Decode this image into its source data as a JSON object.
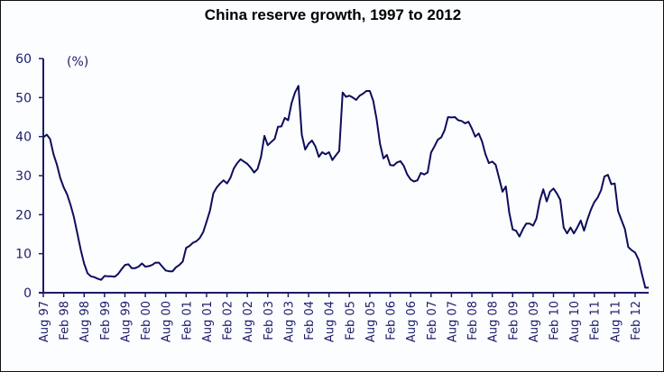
{
  "chart_data": {
    "type": "line",
    "title": "China reserve growth, 1997 to 2012",
    "ylabel": "(%)",
    "xlabel": "",
    "ylim": [
      0,
      60
    ],
    "yticks": [
      0,
      10,
      20,
      30,
      40,
      50,
      60
    ],
    "xticks": [
      "Aug 97",
      "Feb 98",
      "Aug 98",
      "Feb 99",
      "Aug 99",
      "Feb 00",
      "Aug 00",
      "Feb 01",
      "Aug 01",
      "Feb 02",
      "Aug 02",
      "Feb 03",
      "Aug 03",
      "Feb 04",
      "Aug 04",
      "Feb 05",
      "Aug 05",
      "Feb 06",
      "Aug 06",
      "Feb 07",
      "Aug 07",
      "Feb 08",
      "Aug 08",
      "Feb 09",
      "Aug 09",
      "Feb 10",
      "Aug 10",
      "Feb 11",
      "Aug 11",
      "Feb 12"
    ],
    "x_start": "Aug 1997",
    "x_frequency": "monthly",
    "grid": false,
    "line_color": "#0d0d5c",
    "series": [
      {
        "values": [
          39.8,
          40.5,
          39.4,
          35.5,
          32.8,
          29.4,
          27,
          25.2,
          22.5,
          19.4,
          15.2,
          11,
          7.5,
          5,
          4.2,
          4,
          3.6,
          3.3,
          4.3,
          4.2,
          4.2,
          4.1,
          4.8,
          6,
          7.1,
          7.3,
          6.3,
          6.3,
          6.7,
          7.5,
          6.7,
          6.8,
          7.1,
          7.7,
          7.7,
          6.7,
          5.7,
          5.5,
          5.5,
          6.5,
          7.1,
          8,
          11.5,
          12,
          12.8,
          13.2,
          14,
          15.5,
          18.2,
          21,
          25.5,
          27,
          28,
          28.8,
          28,
          29.4,
          31.8,
          33.2,
          34.2,
          33.6,
          33,
          32,
          30.8,
          31.7,
          34.8,
          40.2,
          37.8,
          38.6,
          39.4,
          42.5,
          42.6,
          44.8,
          44.2,
          48.6,
          51.3,
          53,
          40.5,
          36.7,
          38.2,
          39,
          37.5,
          34.8,
          36,
          35.5,
          36,
          34,
          35.2,
          36.3,
          51.3,
          50.2,
          50.5,
          50,
          49.4,
          50.5,
          51,
          51.7,
          51.7,
          49.2,
          44.4,
          38.2,
          34.4,
          35.3,
          32.7,
          32.6,
          33.4,
          33.7,
          32.5,
          30.3,
          29,
          28.5,
          28.8,
          30.7,
          30.3,
          30.8,
          35.9,
          37.5,
          39.2,
          39.8,
          41.7,
          45,
          44.9,
          45,
          44.2,
          44,
          43.4,
          43.8,
          42.1,
          40,
          40.8,
          38.8,
          35.5,
          33.2,
          33.6,
          32.8,
          29.4,
          25.9,
          27.2,
          20.5,
          16.2,
          15.9,
          14.4,
          16.3,
          17.7,
          17.7,
          17.2,
          19,
          23.6,
          26.5,
          23.4,
          25.9,
          26.7,
          25.4,
          23.8,
          16.7,
          15.2,
          16.7,
          15.2,
          16.7,
          18.5,
          15.9,
          18.8,
          21.3,
          23.2,
          24.4,
          26.3,
          29.8,
          30.2,
          27.8,
          28,
          20.9,
          18.6,
          16.3,
          11.7,
          10.9,
          10.3,
          8.5,
          4.8,
          1.3,
          1.3
        ]
      }
    ]
  }
}
